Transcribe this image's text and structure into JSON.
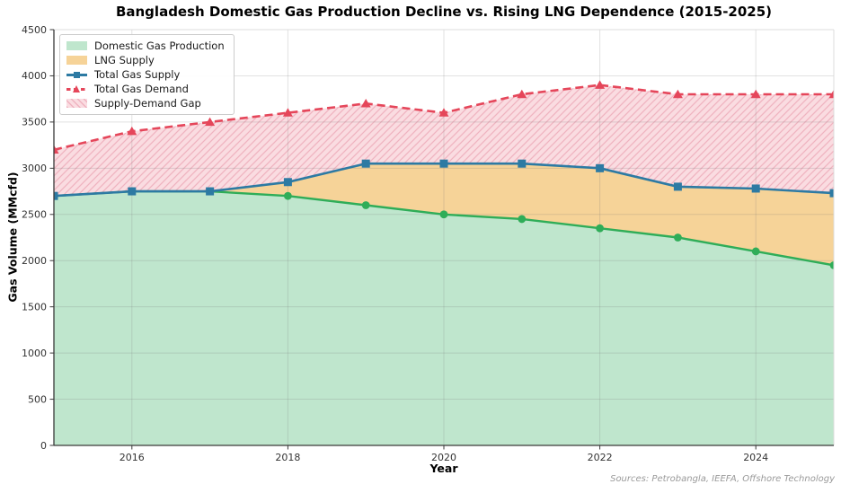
{
  "title": "Bangladesh Domestic Gas Production Decline vs. Rising LNG Dependence (2015-2025)",
  "source_note": "Sources: Petrobangla, IEEFA, Offshore Technology",
  "chart_data": {
    "type": "area",
    "title": "Bangladesh Domestic Gas Production Decline vs. Rising LNG Dependence (2015-2025)",
    "xlabel": "Year",
    "ylabel": "Gas Volume (MMcfd)",
    "x": [
      2015,
      2016,
      2017,
      2018,
      2019,
      2020,
      2021,
      2022,
      2023,
      2024,
      2025
    ],
    "xlim": [
      2015,
      2025
    ],
    "ylim": [
      0,
      4500
    ],
    "x_ticks": [
      2016,
      2018,
      2020,
      2022,
      2024
    ],
    "y_ticks": [
      0,
      500,
      1000,
      1500,
      2000,
      2500,
      3000,
      3500,
      4000,
      4500
    ],
    "grid": true,
    "legend_position": "upper left",
    "series": [
      {
        "name": "Domestic Gas Production",
        "kind": "area",
        "marker": "circle",
        "line_color": "#2fad58",
        "fill_color": "#bfe6cd",
        "values": [
          2700,
          2750,
          2750,
          2700,
          2600,
          2500,
          2450,
          2350,
          2250,
          2100,
          1950
        ]
      },
      {
        "name": "LNG Supply",
        "kind": "band",
        "between": [
          0,
          2
        ],
        "fill_color": "#f6d398",
        "values": [
          0,
          0,
          0,
          150,
          450,
          550,
          600,
          650,
          550,
          680,
          780
        ]
      },
      {
        "name": "Total Gas Supply",
        "kind": "line",
        "marker": "square",
        "line_color": "#2d7aa3",
        "values": [
          2700,
          2750,
          2750,
          2850,
          3050,
          3050,
          3050,
          3000,
          2800,
          2780,
          2730
        ]
      },
      {
        "name": "Total Gas Demand",
        "kind": "line",
        "style": "dashed",
        "marker": "triangle",
        "line_color": "#e5465a",
        "values": [
          3200,
          3400,
          3500,
          3600,
          3700,
          3600,
          3800,
          3900,
          3800,
          3800,
          3800
        ]
      },
      {
        "name": "Supply-Demand Gap",
        "kind": "band",
        "between": [
          2,
          3
        ],
        "fill_color": "#fadce1",
        "hatch": "///",
        "hatch_color": "#efb3c0",
        "values": [
          500,
          650,
          750,
          750,
          650,
          550,
          750,
          900,
          1000,
          1020,
          1070
        ]
      }
    ]
  }
}
